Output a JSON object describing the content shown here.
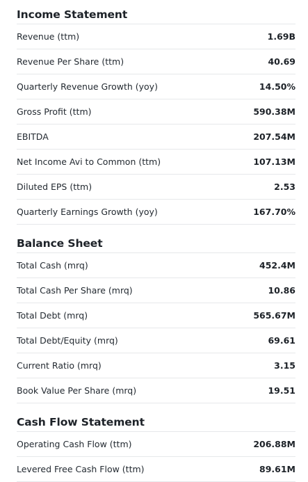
{
  "sections": [
    {
      "title": "Income Statement",
      "rows": [
        {
          "label": "Revenue (ttm)",
          "value": "1.69B"
        },
        {
          "label": "Revenue Per Share (ttm)",
          "value": "40.69"
        },
        {
          "label": "Quarterly Revenue Growth (yoy)",
          "value": "14.50%"
        },
        {
          "label": "Gross Profit (ttm)",
          "value": "590.38M"
        },
        {
          "label": "EBITDA",
          "value": "207.54M"
        },
        {
          "label": "Net Income Avi to Common (ttm)",
          "value": "107.13M"
        },
        {
          "label": "Diluted EPS (ttm)",
          "value": "2.53"
        },
        {
          "label": "Quarterly Earnings Growth (yoy)",
          "value": "167.70%"
        }
      ]
    },
    {
      "title": "Balance Sheet",
      "rows": [
        {
          "label": "Total Cash (mrq)",
          "value": "452.4M"
        },
        {
          "label": "Total Cash Per Share (mrq)",
          "value": "10.86"
        },
        {
          "label": "Total Debt (mrq)",
          "value": "565.67M"
        },
        {
          "label": "Total Debt/Equity (mrq)",
          "value": "69.61"
        },
        {
          "label": "Current Ratio (mrq)",
          "value": "3.15"
        },
        {
          "label": "Book Value Per Share (mrq)",
          "value": "19.51"
        }
      ]
    },
    {
      "title": "Cash Flow Statement",
      "rows": [
        {
          "label": "Operating Cash Flow (ttm)",
          "value": "206.88M"
        },
        {
          "label": "Levered Free Cash Flow (ttm)",
          "value": "89.61M"
        }
      ]
    }
  ]
}
